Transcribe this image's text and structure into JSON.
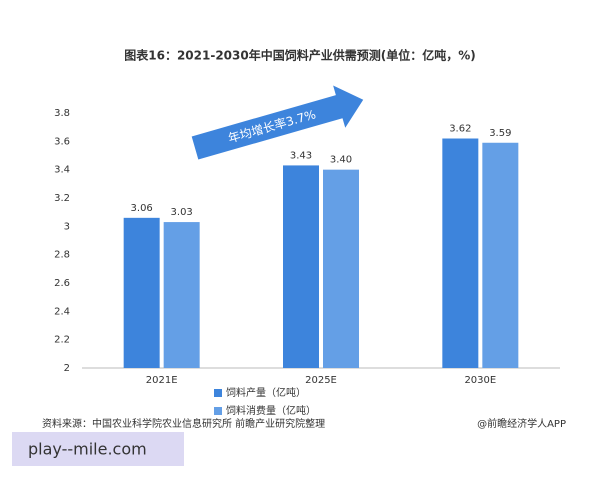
{
  "chart_data": {
    "type": "bar",
    "title": "图表16：2021-2030年中国饲料产业供需预测(单位：亿吨，%)",
    "categories": [
      "2021E",
      "2025E",
      "2030E"
    ],
    "series": [
      {
        "name": "饲料产量（亿吨）",
        "color": "#3d84dc",
        "values": [
          3.06,
          3.43,
          3.62
        ],
        "value_labels": [
          "3.06",
          "3.43",
          "3.62"
        ]
      },
      {
        "name": "饲料消费量（亿吨）",
        "color": "#649fe6",
        "values": [
          3.03,
          3.4,
          3.59
        ],
        "value_labels": [
          "3.03",
          "3.40",
          "3.59"
        ]
      }
    ],
    "ylim": [
      2,
      3.8
    ],
    "yticks": [
      2,
      2.2,
      2.4,
      2.6,
      2.8,
      3,
      3.2,
      3.4,
      3.6,
      3.8
    ],
    "grid": false,
    "annotation": "年均增长率3.7%",
    "source": "资料来源：中国农业科学院农业信息研究所 前瞻产业研究院整理",
    "credit": "@前瞻经济学人APP",
    "watermark": "play--mile.com"
  }
}
